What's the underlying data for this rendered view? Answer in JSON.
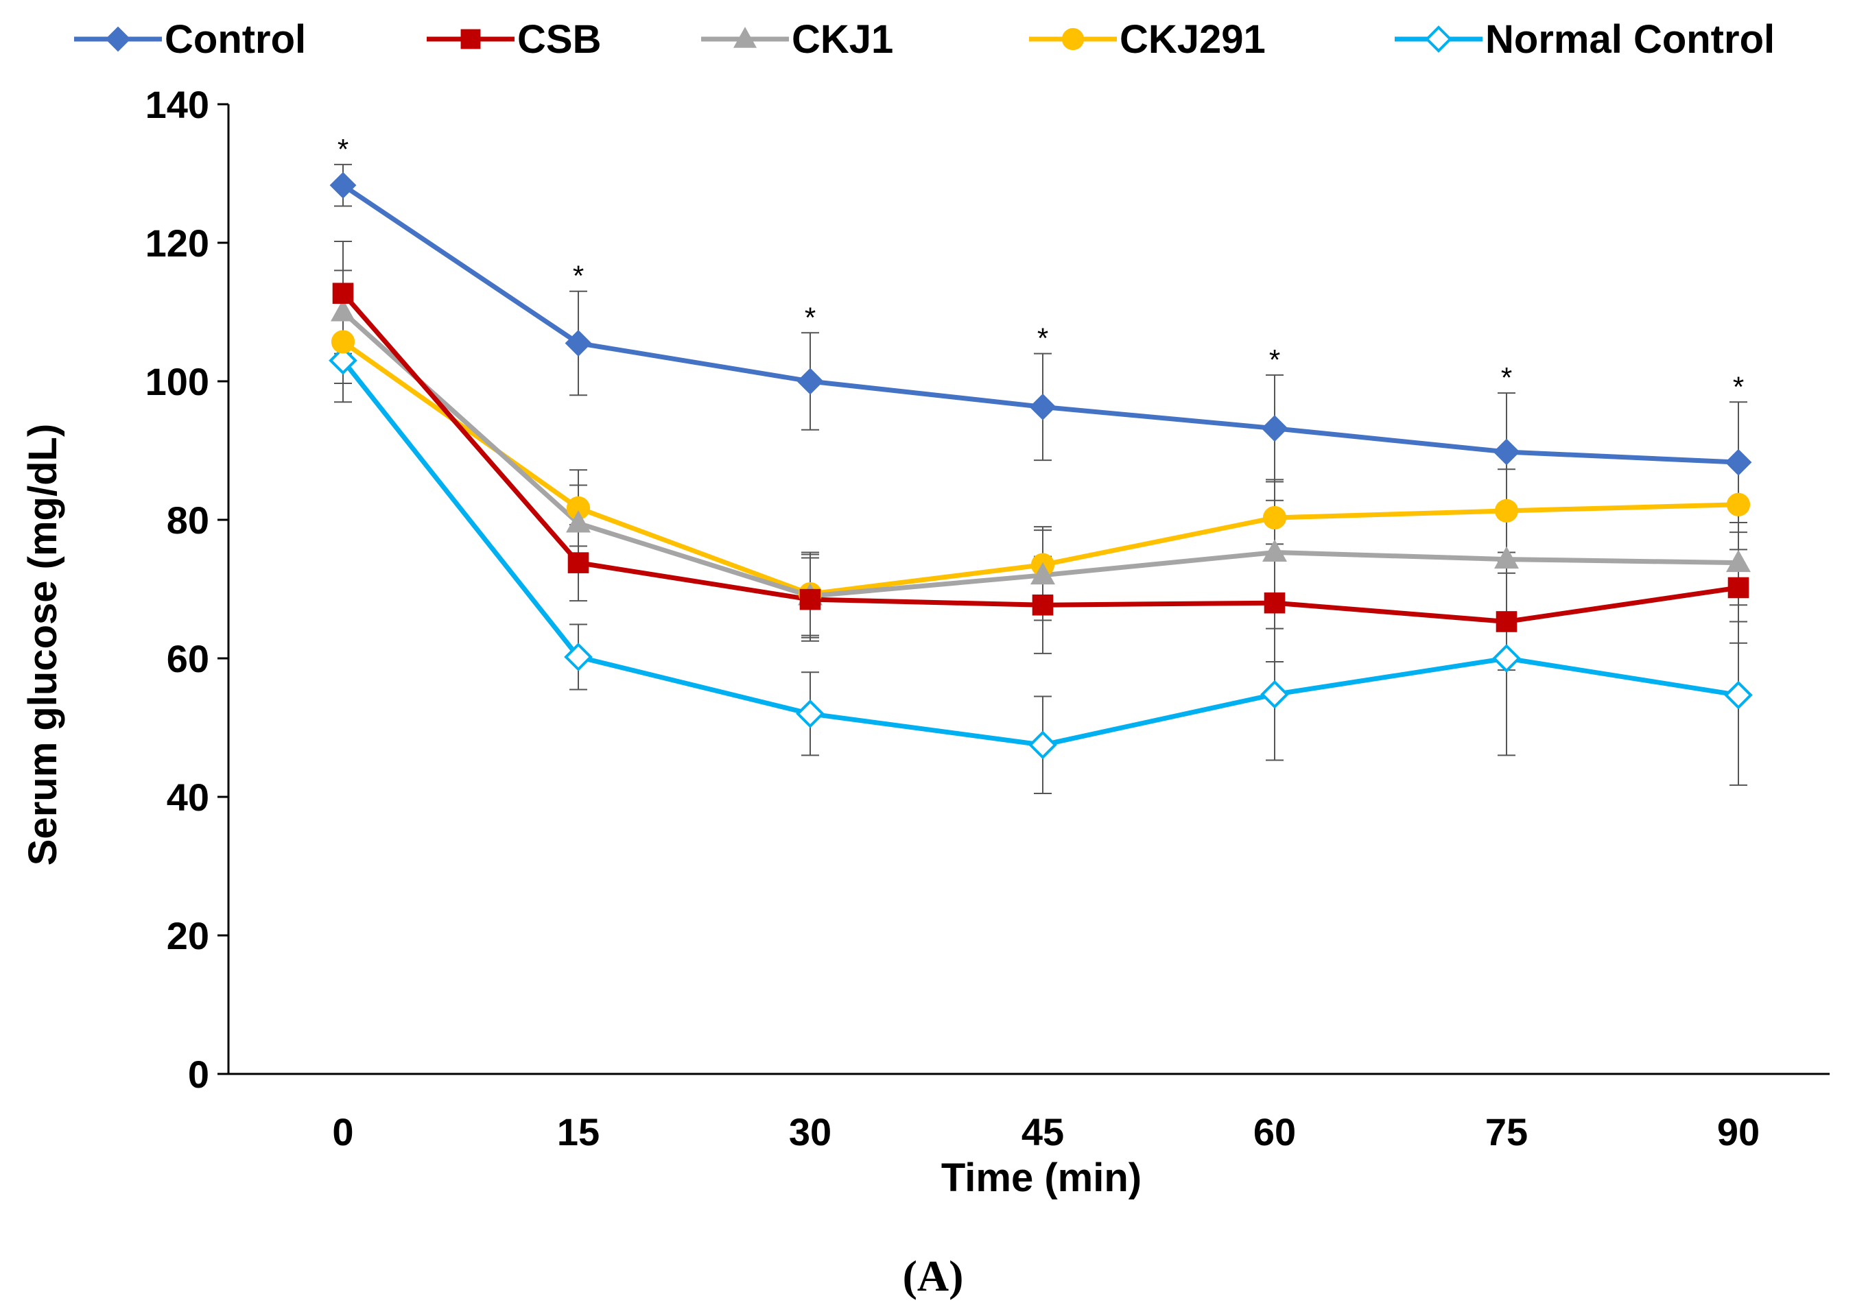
{
  "chart_data": {
    "type": "line",
    "title": "",
    "xlabel": "Time (min)",
    "ylabel": "Serum glucose (mg/dL)",
    "caption_open": "(",
    "caption_letter": "A",
    "caption_close": ")",
    "x": [
      0,
      15,
      30,
      45,
      60,
      75,
      90
    ],
    "x_tick_labels": [
      "0",
      "15",
      "30",
      "45",
      "60",
      "75",
      "90"
    ],
    "ylim": [
      0,
      140
    ],
    "y_ticks": [
      0,
      20,
      40,
      60,
      80,
      100,
      120,
      140
    ],
    "y_tick_labels": [
      "0",
      "20",
      "40",
      "60",
      "80",
      "100",
      "120",
      "140"
    ],
    "legend_position": "top",
    "significance_marker": "*",
    "significance_series": "Control",
    "series": [
      {
        "name": "Control",
        "color": "#4472C4",
        "marker": "diamond-filled",
        "values": [
          128.3,
          105.5,
          100.0,
          96.3,
          93.2,
          89.8,
          88.3
        ],
        "errors": [
          3.0,
          7.5,
          7.0,
          7.7,
          7.7,
          8.5,
          8.7
        ]
      },
      {
        "name": "CSB",
        "color": "#C00000",
        "marker": "square",
        "values": [
          112.7,
          73.8,
          68.5,
          67.7,
          68.0,
          65.3,
          70.2
        ],
        "errors": [
          7.5,
          5.5,
          6.0,
          7.0,
          8.5,
          7.0,
          8.0
        ]
      },
      {
        "name": "CKJ1",
        "color": "#A5A5A5",
        "marker": "triangle",
        "values": [
          110.0,
          79.5,
          69.0,
          72.0,
          75.3,
          74.3,
          73.8
        ],
        "errors": [
          6.0,
          5.5,
          6.0,
          6.5,
          7.5,
          8.0,
          8.5
        ]
      },
      {
        "name": "CKJ291",
        "color": "#FFC000",
        "marker": "circle",
        "values": [
          105.7,
          81.7,
          69.3,
          73.5,
          80.3,
          81.3,
          82.2
        ],
        "errors": [
          6.0,
          5.5,
          6.0,
          5.5,
          5.5,
          6.0,
          6.5
        ]
      },
      {
        "name": "Normal Control",
        "color": "#00B0F0",
        "marker": "diamond-open",
        "values": [
          103.0,
          60.2,
          52.0,
          47.5,
          54.8,
          60.0,
          54.7
        ],
        "errors": [
          6.0,
          4.7,
          6.0,
          7.0,
          9.5,
          14.0,
          13.0
        ]
      }
    ]
  }
}
